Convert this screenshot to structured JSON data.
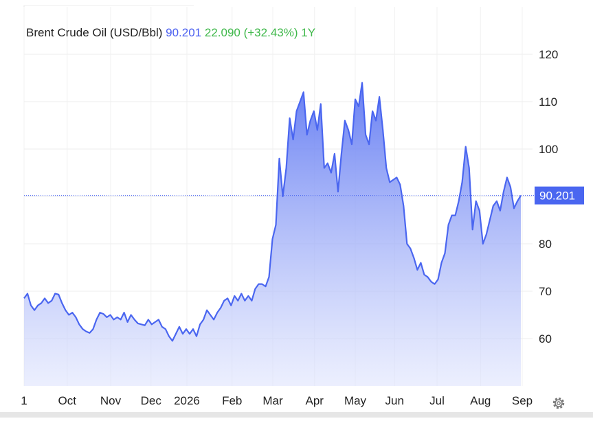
{
  "chart_data": {
    "type": "area",
    "title": "Brent Crude Oil (USD/Bbl)",
    "price": "90.201",
    "change": "22.090",
    "change_pct": "(+32.43%)",
    "period": "1Y",
    "series": [
      {
        "name": "Brent Crude Oil",
        "color": "#4a66f0",
        "values": [
          68.5,
          69.5,
          67,
          66,
          67,
          67.5,
          68.5,
          67.5,
          68,
          69.5,
          69.3,
          67.5,
          66,
          65,
          65.5,
          64.5,
          63,
          62,
          61.5,
          61.2,
          62,
          64,
          65.5,
          65.2,
          64.5,
          65,
          64,
          64.5,
          64,
          65.5,
          63.5,
          65,
          64,
          63.2,
          63,
          62.8,
          64,
          63,
          63.5,
          64,
          62.5,
          62,
          60.5,
          59.5,
          61,
          62.5,
          61,
          62,
          61,
          62,
          60.5,
          63,
          64,
          66,
          65,
          64,
          65.5,
          66.5,
          68,
          68.5,
          67,
          69,
          68,
          69.5,
          68,
          69,
          68,
          70.5,
          71.5,
          71.5,
          71,
          73,
          81,
          84,
          98,
          90,
          96,
          106.5,
          102,
          108,
          110,
          112,
          103,
          106,
          108,
          104,
          109.5,
          96,
          97,
          95,
          99,
          91,
          99,
          106,
          104,
          101,
          110.5,
          109,
          114,
          103,
          101,
          108,
          106,
          111,
          104,
          96,
          93,
          93.5,
          94,
          92.5,
          88,
          80,
          79,
          77,
          74.5,
          76,
          73.5,
          73,
          72,
          71.5,
          72.5,
          76,
          78,
          84,
          86,
          86,
          89,
          93,
          100.5,
          96,
          83,
          89,
          87,
          80,
          82,
          85,
          88,
          89,
          87,
          91,
          94,
          92,
          87.5,
          89,
          90.201
        ]
      }
    ],
    "xlim": [
      0,
      144
    ],
    "xticks": [
      {
        "value": 0,
        "label": "1"
      },
      {
        "value": 12.5,
        "label": "Oct"
      },
      {
        "value": 25.1,
        "label": "Nov"
      },
      {
        "value": 36.8,
        "label": "Dec"
      },
      {
        "value": 47.2,
        "label": "2026"
      },
      {
        "value": 60.3,
        "label": "Feb"
      },
      {
        "value": 72.1,
        "label": "Mar"
      },
      {
        "value": 84.2,
        "label": "Apr"
      },
      {
        "value": 96,
        "label": "May"
      },
      {
        "value": 107.4,
        "label": "Jun"
      },
      {
        "value": 119.7,
        "label": "Jul"
      },
      {
        "value": 132.3,
        "label": "Aug"
      },
      {
        "value": 144.4,
        "label": "Sep"
      }
    ],
    "ylim": [
      50,
      130
    ],
    "yticks": [
      60,
      70,
      80,
      90,
      100,
      110,
      120
    ],
    "grid": true
  }
}
